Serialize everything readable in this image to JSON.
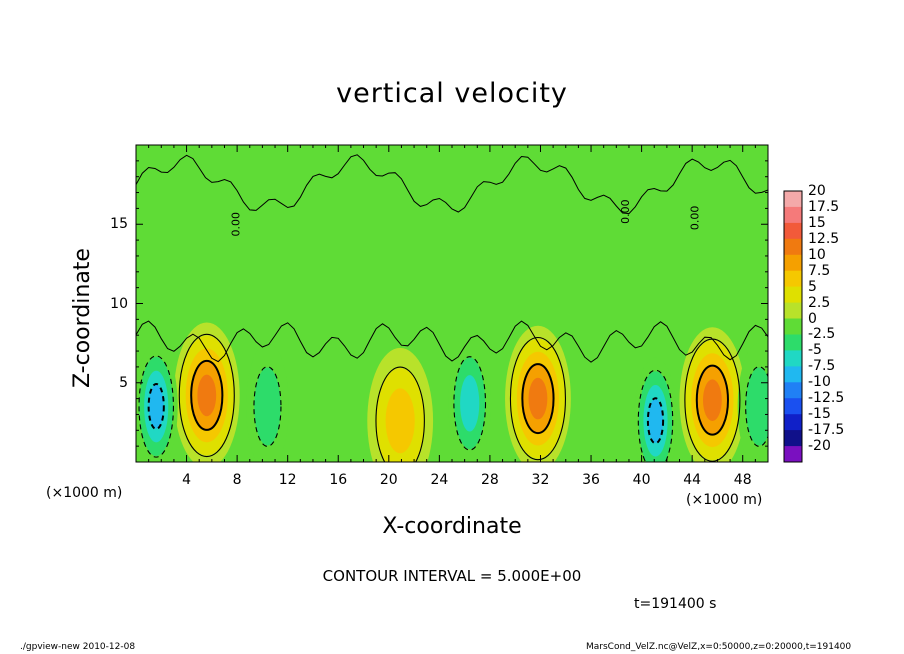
{
  "chart_data": {
    "type": "heatmap",
    "title": "vertical velocity",
    "xlabel": "X-coordinate",
    "ylabel": "Z-coordinate",
    "x_unit": "(×1000 m)",
    "y_unit": "(×1000 m)",
    "xlim": [
      0,
      50
    ],
    "ylim": [
      0,
      20
    ],
    "x_ticks": [
      "4",
      "8",
      "12",
      "16",
      "20",
      "24",
      "28",
      "32",
      "36",
      "40",
      "44",
      "48"
    ],
    "y_ticks": [
      "5",
      "10",
      "15"
    ],
    "colorbar_labels": [
      "20",
      "17.5",
      "15",
      "12.5",
      "10",
      "7.5",
      "5",
      "2.5",
      "0",
      "-2.5",
      "-5",
      "-7.5",
      "-10",
      "-12.5",
      "-15",
      "-17.5",
      "-20"
    ],
    "colorbar_colors": [
      "#f4a9a9",
      "#f57a7a",
      "#f25a3a",
      "#f07a10",
      "#f5a000",
      "#f5c800",
      "#dfe000",
      "#b8e22a",
      "#5fdc36",
      "#2ddc6a",
      "#20d8c4",
      "#20b8f0",
      "#2080f5",
      "#1a50f0",
      "#1020c8",
      "#10108a",
      "#7a10c0"
    ],
    "contour_labels": [
      "0.00",
      "0.00",
      "0.00"
    ],
    "updrafts": [
      {
        "x": 5.6,
        "z": 4.2,
        "peak": 12
      },
      {
        "x": 20.9,
        "z": 2.6,
        "peak": 8
      },
      {
        "x": 31.8,
        "z": 4.0,
        "peak": 12
      },
      {
        "x": 45.6,
        "z": 3.9,
        "peak": 12
      }
    ],
    "downdrafts": [
      {
        "x": 1.6,
        "z": 3.5,
        "peak": -10
      },
      {
        "x": 10.4,
        "z": 3.5,
        "peak": -5
      },
      {
        "x": 26.4,
        "z": 3.7,
        "peak": -7.5
      },
      {
        "x": 41.1,
        "z": 2.6,
        "peak": -10
      },
      {
        "x": 49.3,
        "z": 3.5,
        "peak": -5
      }
    ]
  },
  "contour_interval_text": "CONTOUR INTERVAL = 5.000E+00",
  "time_text": "t=191400 s",
  "footer_left": "./gpview-new   2010-12-08",
  "footer_right": "MarsCond_VelZ.nc@VelZ,x=0:50000,z=0:20000,t=191400"
}
